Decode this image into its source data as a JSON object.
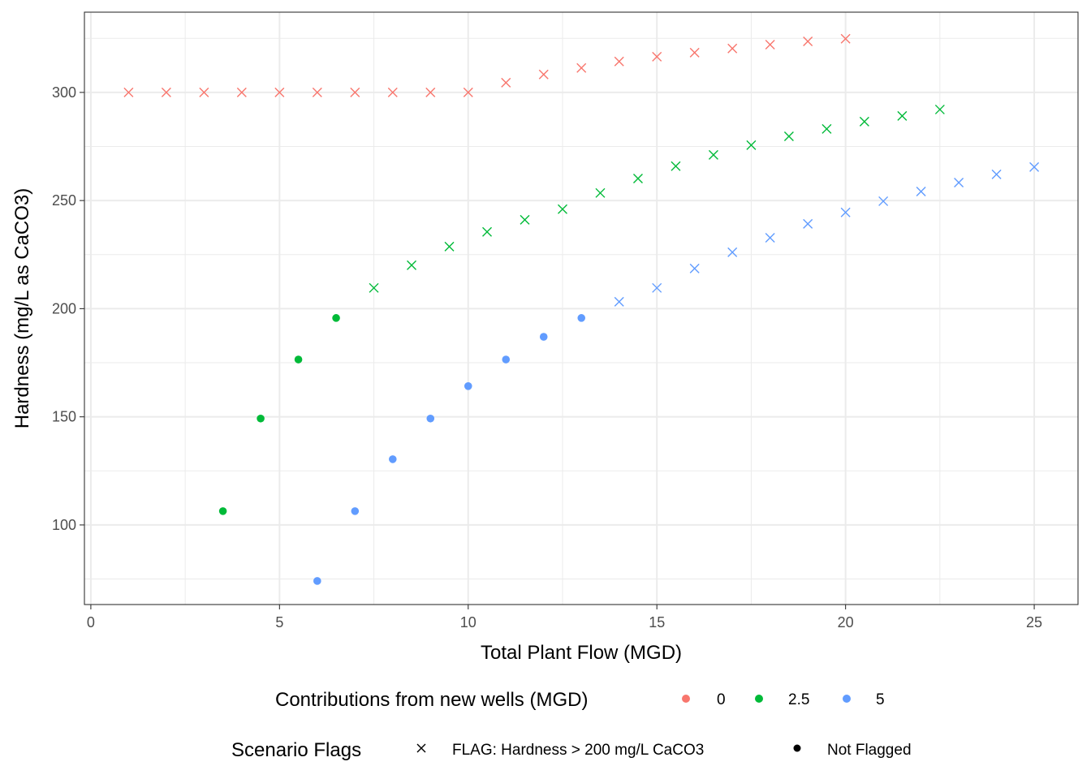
{
  "chart_data": {
    "type": "scatter",
    "title": "",
    "xlabel": "Total Plant Flow (MGD)",
    "ylabel": "Hardness (mg/L as CaCO3)",
    "xlim": [
      -0.17,
      26.16
    ],
    "ylim": [
      63.2,
      337.1
    ],
    "x_ticks": [
      0,
      5,
      10,
      15,
      20,
      25
    ],
    "x_tick_labels": [
      "0",
      "5",
      "10",
      "15",
      "20",
      "25"
    ],
    "y_ticks": [
      100,
      150,
      200,
      250,
      300
    ],
    "y_tick_labels": [
      "100",
      "150",
      "200",
      "250",
      "300"
    ],
    "x_minor_ticks": [
      2.5,
      7.5,
      12.5,
      17.5,
      22.5
    ],
    "y_minor_ticks": [
      75,
      125,
      175,
      225,
      275,
      325
    ],
    "grid": true,
    "flag_threshold": 200,
    "series": [
      {
        "name": "0",
        "color": "#F8766D",
        "x": [
          1,
          2,
          3,
          4,
          5,
          6,
          7,
          8,
          9,
          10,
          11,
          12,
          13,
          14,
          15,
          16,
          17,
          18,
          19,
          20
        ],
        "y": [
          300,
          300,
          300,
          300,
          300,
          300,
          300,
          300,
          300,
          300,
          304.5,
          308.3,
          311.3,
          314.3,
          316.5,
          318.4,
          320.3,
          322.1,
          323.6,
          324.8
        ]
      },
      {
        "name": "2.5",
        "color": "#00BA38",
        "x": [
          3.5,
          4.5,
          5.5,
          6.5,
          7.5,
          8.5,
          9.5,
          10.5,
          11.5,
          12.5,
          13.5,
          14.5,
          15.5,
          16.5,
          17.5,
          18.5,
          19.5,
          20.5,
          21.5,
          22.5
        ],
        "y": [
          106.4,
          149.2,
          176.5,
          195.7,
          209.6,
          220.1,
          228.7,
          235.5,
          241.1,
          246.0,
          253.5,
          260.2,
          265.9,
          271.1,
          275.6,
          279.7,
          283.1,
          286.5,
          289.1,
          292.1
        ]
      },
      {
        "name": "5",
        "color": "#619CFF",
        "x": [
          6,
          7,
          8,
          9,
          10,
          11,
          12,
          13,
          14,
          15,
          16,
          17,
          18,
          19,
          20,
          21,
          22,
          23,
          24,
          25
        ],
        "y": [
          74.1,
          106.4,
          130.4,
          149.2,
          164.2,
          176.5,
          187.0,
          195.7,
          203.2,
          209.6,
          218.6,
          226.1,
          232.8,
          239.2,
          244.5,
          249.7,
          254.2,
          258.3,
          262.1,
          265.5
        ]
      }
    ],
    "legends": [
      {
        "title": "Contributions from new wells (MGD)",
        "type": "color",
        "placement": "bottom",
        "entries": [
          {
            "label": "0",
            "color": "#F8766D"
          },
          {
            "label": "2.5",
            "color": "#00BA38"
          },
          {
            "label": "5",
            "color": "#619CFF"
          }
        ]
      },
      {
        "title": "Scenario Flags",
        "type": "shape",
        "placement": "bottom",
        "entries": [
          {
            "label": "FLAG: Hardness > 200 mg/L CaCO3",
            "shape": "cross"
          },
          {
            "label": "Not Flagged",
            "shape": "circle"
          }
        ]
      }
    ]
  }
}
